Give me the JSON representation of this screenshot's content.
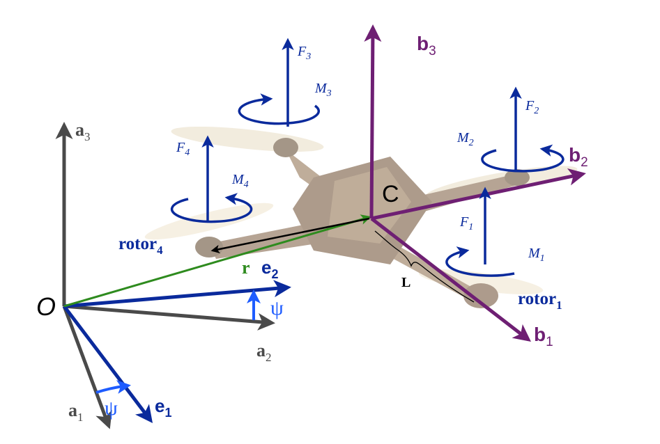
{
  "colors": {
    "inertial_frame": "#4a4a4a",
    "intermediate_frame": "#0a2a9c",
    "body_frame": "#6e1f73",
    "position_vector": "#2e8b1e",
    "arm_vector": "#000000",
    "yaw_marker": "#1e5cff",
    "drone_body": "#6b4a2c"
  },
  "inertial_frame": {
    "origin": "O",
    "a1": {
      "main": "a",
      "sub": "1"
    },
    "a2": {
      "main": "a",
      "sub": "2"
    },
    "a3": {
      "main": "a",
      "sub": "3"
    }
  },
  "intermediate_frame": {
    "e1": {
      "main": "e",
      "sub": "1"
    },
    "e2": {
      "main": "e",
      "sub": "2"
    },
    "yaw_symbol": "ψ"
  },
  "body_frame": {
    "center": "C",
    "b1": {
      "main": "b",
      "sub": "1"
    },
    "b2": {
      "main": "b",
      "sub": "2"
    },
    "b3": {
      "main": "b",
      "sub": "3"
    }
  },
  "position_vector_label": "r",
  "arm_length_label": "L",
  "rotor_labels": {
    "rotor1": {
      "main": "rotor",
      "sub": "1"
    },
    "rotor4": {
      "main": "rotor",
      "sub": "4"
    }
  },
  "rotors": [
    {
      "force": {
        "main": "F",
        "sub": "1"
      },
      "moment": {
        "main": "M",
        "sub": "1"
      }
    },
    {
      "force": {
        "main": "F",
        "sub": "2"
      },
      "moment": {
        "main": "M",
        "sub": "2"
      }
    },
    {
      "force": {
        "main": "F",
        "sub": "3"
      },
      "moment": {
        "main": "M",
        "sub": "3"
      }
    },
    {
      "force": {
        "main": "F",
        "sub": "4"
      },
      "moment": {
        "main": "M",
        "sub": "4"
      }
    }
  ]
}
